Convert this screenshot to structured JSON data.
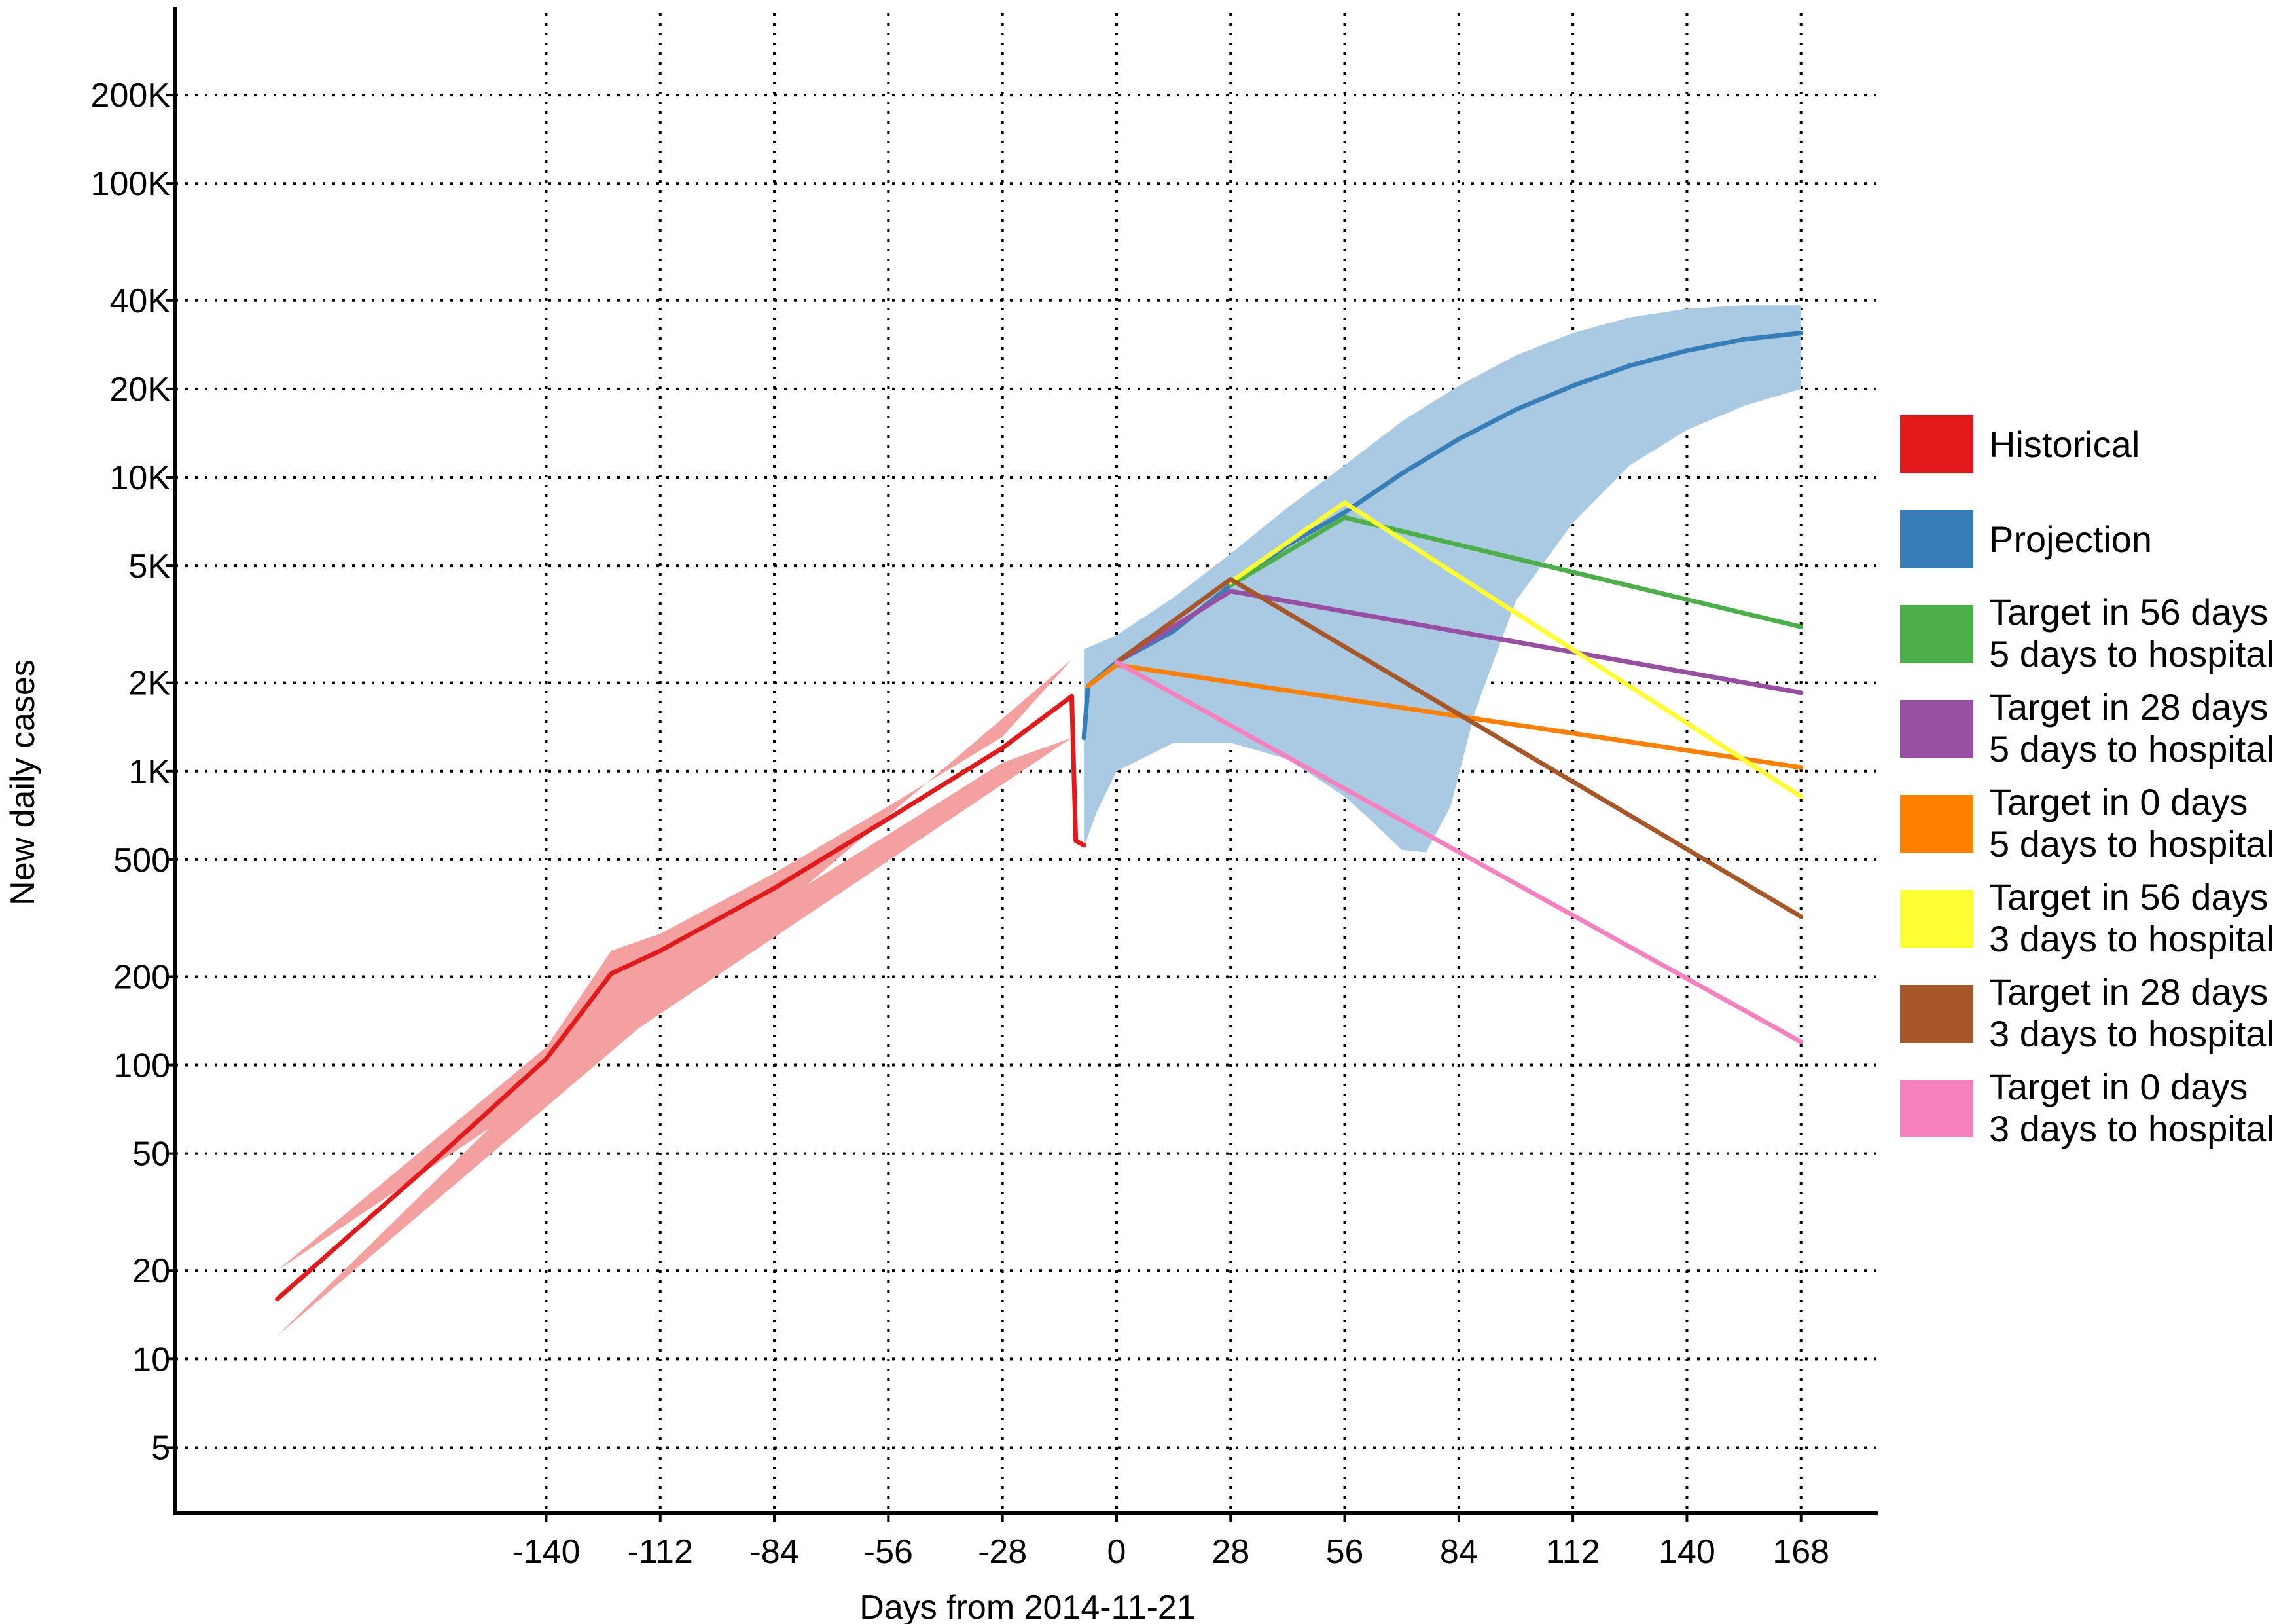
{
  "chart_data": {
    "type": "line",
    "xlabel": "Days from 2014-11-21",
    "ylabel": "New daily cases",
    "x_ticks": [
      -140,
      -112,
      -84,
      -56,
      -28,
      0,
      28,
      56,
      84,
      112,
      140,
      168
    ],
    "x_tick_labels": [
      "-140",
      "-112",
      "-84",
      "-56",
      "-28",
      "0",
      "28",
      "56",
      "84",
      "112",
      "140",
      "168"
    ],
    "xlim": [
      -231,
      187
    ],
    "y_scale": "log",
    "ylim": [
      3,
      400000
    ],
    "y_ticks": [
      5,
      10,
      20,
      50,
      100,
      200,
      500,
      1000,
      2000,
      5000,
      10000,
      20000,
      40000,
      100000,
      200000
    ],
    "y_tick_labels": [
      "5",
      "10",
      "20",
      "50",
      "100",
      "200",
      "500",
      "1K",
      "2K",
      "5K",
      "10K",
      "20K",
      "40K",
      "100K",
      "200K"
    ],
    "grid": true,
    "legend_position": "right",
    "bands": [
      {
        "name": "Historical",
        "color": "#f4a0a0",
        "upper": [
          [
            -206,
            20
          ],
          [
            -170,
            52
          ],
          [
            -140,
            115
          ],
          [
            -124,
            245
          ],
          [
            -112,
            280
          ],
          [
            -84,
            450
          ],
          [
            -56,
            760
          ],
          [
            -28,
            1310
          ],
          [
            -11,
            2400
          ]
        ],
        "lower": [
          [
            -206,
            12
          ],
          [
            -170,
            37
          ],
          [
            -140,
            94
          ],
          [
            -124,
            175
          ],
          [
            -112,
            210
          ],
          [
            -84,
            350
          ],
          [
            -56,
            610
          ],
          [
            -28,
            1070
          ],
          [
            -11,
            1300
          ]
        ]
      },
      {
        "name": "Projection",
        "color": "#aac9e3",
        "upper": [
          [
            -8,
            2600
          ],
          [
            0,
            2900
          ],
          [
            14,
            3900
          ],
          [
            28,
            5500
          ],
          [
            42,
            7900
          ],
          [
            56,
            11000
          ],
          [
            70,
            15500
          ],
          [
            84,
            20500
          ],
          [
            98,
            26000
          ],
          [
            112,
            31000
          ],
          [
            126,
            35000
          ],
          [
            140,
            37500
          ],
          [
            154,
            38500
          ],
          [
            168,
            38500
          ]
        ],
        "lower": [
          [
            168,
            20000
          ],
          [
            154,
            17500
          ],
          [
            140,
            14500
          ],
          [
            126,
            11000
          ],
          [
            112,
            7000
          ],
          [
            98,
            3800
          ],
          [
            88,
            1600
          ],
          [
            82,
            760
          ],
          [
            76,
            530
          ],
          [
            70,
            540
          ],
          [
            62,
            690
          ],
          [
            56,
            820
          ],
          [
            42,
            1100
          ],
          [
            28,
            1250
          ],
          [
            14,
            1250
          ],
          [
            0,
            1000
          ],
          [
            -5,
            720
          ],
          [
            -8,
            550
          ]
        ]
      }
    ],
    "series": [
      {
        "name": "Historical",
        "color": "#e31a1c",
        "points": [
          [
            -206,
            16
          ],
          [
            -170,
            44
          ],
          [
            -140,
            105
          ],
          [
            -124,
            205
          ],
          [
            -112,
            245
          ],
          [
            -84,
            400
          ],
          [
            -56,
            690
          ],
          [
            -28,
            1200
          ],
          [
            -11,
            1800
          ],
          [
            -10,
            580
          ],
          [
            -8,
            560
          ]
        ]
      },
      {
        "name": "Projection",
        "color": "#377eb8",
        "points": [
          [
            -8,
            1300
          ],
          [
            -7,
            1950
          ],
          [
            0,
            2350
          ],
          [
            14,
            3000
          ],
          [
            28,
            4300
          ],
          [
            42,
            5900
          ],
          [
            56,
            7600
          ],
          [
            70,
            10300
          ],
          [
            84,
            13500
          ],
          [
            98,
            17000
          ],
          [
            112,
            20500
          ],
          [
            126,
            24000
          ],
          [
            140,
            27000
          ],
          [
            154,
            29500
          ],
          [
            168,
            31000
          ]
        ]
      },
      {
        "name": "Target in 56 days\n5 days to hospital",
        "color": "#4daf4a",
        "points": [
          [
            28,
            4300
          ],
          [
            56,
            7300
          ],
          [
            168,
            3100
          ]
        ]
      },
      {
        "name": "Target in 28 days\n5 days to hospital",
        "color": "#984ea3",
        "points": [
          [
            0,
            2350
          ],
          [
            28,
            4100
          ],
          [
            168,
            1850
          ]
        ]
      },
      {
        "name": "Target in 0 days\n5 days to hospital",
        "color": "#ff7f00",
        "points": [
          [
            -7,
            1950
          ],
          [
            0,
            2300
          ],
          [
            168,
            1030
          ]
        ]
      },
      {
        "name": "Target in 56 days\n3 days to hospital",
        "color": "#ffff33",
        "points": [
          [
            28,
            4400
          ],
          [
            56,
            8200
          ],
          [
            168,
            820
          ]
        ]
      },
      {
        "name": "Target in 28 days\n3 days to hospital",
        "color": "#a65628",
        "points": [
          [
            0,
            2350
          ],
          [
            28,
            4500
          ],
          [
            168,
            320
          ]
        ]
      },
      {
        "name": "Target in 0 days\n3 days to hospital",
        "color": "#f781bf",
        "points": [
          [
            0,
            2350
          ],
          [
            168,
            120
          ]
        ]
      }
    ],
    "legend": [
      {
        "lines": [
          "Historical"
        ],
        "color": "#e31a1c"
      },
      {
        "lines": [
          "Projection"
        ],
        "color": "#377eb8"
      },
      {
        "lines": [
          "Target in 56 days",
          "5 days to hospital"
        ],
        "color": "#4daf4a"
      },
      {
        "lines": [
          "Target in 28 days",
          "5 days to hospital"
        ],
        "color": "#984ea3"
      },
      {
        "lines": [
          "Target in 0 days",
          "5 days to hospital"
        ],
        "color": "#ff7f00"
      },
      {
        "lines": [
          "Target in 56 days",
          "3 days to hospital"
        ],
        "color": "#ffff33"
      },
      {
        "lines": [
          "Target in 28 days",
          "3 days to hospital"
        ],
        "color": "#a65628"
      },
      {
        "lines": [
          "Target in 0 days",
          "3 days to hospital"
        ],
        "color": "#f781bf"
      }
    ]
  }
}
